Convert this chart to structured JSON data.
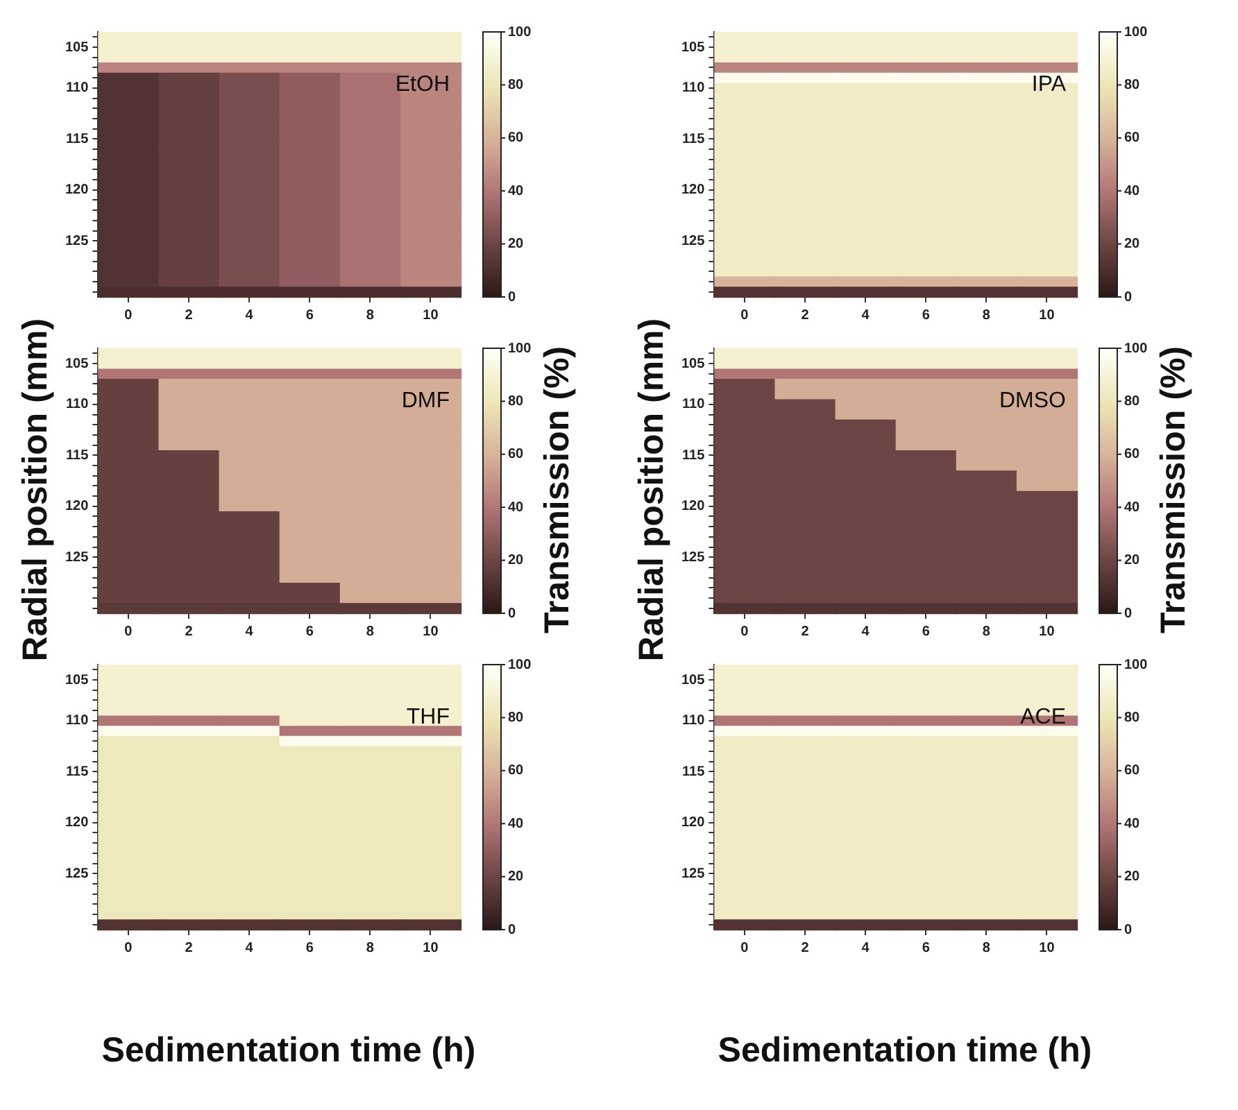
{
  "chart_data": [
    {
      "type": "heatmap",
      "title": "EtOH",
      "categories": [
        "0",
        "2",
        "4",
        "6",
        "8",
        "10"
      ],
      "y_categories": [
        null,
        "105",
        null,
        null,
        null,
        "110",
        null,
        null,
        null,
        null,
        "115",
        null,
        null,
        null,
        null,
        "120",
        null,
        null,
        null,
        null,
        "125",
        null,
        null,
        null,
        null,
        null
      ],
      "clim": [
        0,
        100
      ],
      "cticks": [
        0,
        20,
        40,
        60,
        80,
        100
      ],
      "cells": [
        [
          88,
          88,
          88,
          88,
          88,
          88
        ],
        [
          88,
          88,
          88,
          88,
          88,
          88
        ],
        [
          88,
          88,
          88,
          88,
          88,
          88
        ],
        [
          45,
          45,
          45,
          45,
          45,
          45
        ],
        [
          12,
          18,
          24,
          30,
          38,
          45
        ],
        [
          12,
          18,
          24,
          30,
          38,
          45
        ],
        [
          12,
          18,
          24,
          30,
          38,
          45
        ],
        [
          12,
          18,
          24,
          30,
          38,
          45
        ],
        [
          12,
          18,
          24,
          30,
          38,
          45
        ],
        [
          12,
          18,
          24,
          30,
          38,
          45
        ],
        [
          12,
          18,
          24,
          30,
          38,
          45
        ],
        [
          12,
          18,
          24,
          30,
          38,
          45
        ],
        [
          12,
          18,
          24,
          30,
          38,
          45
        ],
        [
          12,
          18,
          24,
          30,
          38,
          45
        ],
        [
          12,
          18,
          24,
          30,
          38,
          45
        ],
        [
          12,
          18,
          24,
          30,
          38,
          45
        ],
        [
          12,
          18,
          24,
          30,
          38,
          45
        ],
        [
          12,
          18,
          24,
          30,
          38,
          45
        ],
        [
          12,
          18,
          24,
          30,
          38,
          45
        ],
        [
          12,
          18,
          24,
          30,
          38,
          45
        ],
        [
          12,
          18,
          24,
          30,
          38,
          45
        ],
        [
          12,
          18,
          24,
          30,
          38,
          45
        ],
        [
          12,
          18,
          24,
          30,
          38,
          45
        ],
        [
          12,
          18,
          24,
          30,
          38,
          45
        ],
        [
          12,
          18,
          24,
          30,
          38,
          45
        ],
        [
          10,
          10,
          10,
          10,
          10,
          10
        ]
      ]
    },
    {
      "type": "heatmap",
      "title": "IPA",
      "categories": [
        "0",
        "2",
        "4",
        "6",
        "8",
        "10"
      ],
      "y_categories": [
        null,
        "105",
        null,
        null,
        null,
        "110",
        null,
        null,
        null,
        null,
        "115",
        null,
        null,
        null,
        null,
        "120",
        null,
        null,
        null,
        null,
        "125",
        null,
        null,
        null,
        null,
        null
      ],
      "clim": [
        0,
        100
      ],
      "cticks": [
        0,
        20,
        40,
        60,
        80,
        100
      ],
      "cells": [
        [
          88,
          88,
          88,
          88,
          88,
          88
        ],
        [
          88,
          88,
          88,
          88,
          88,
          88
        ],
        [
          88,
          88,
          88,
          88,
          88,
          88
        ],
        [
          45,
          45,
          45,
          45,
          45,
          45
        ],
        [
          97,
          97,
          97,
          97,
          97,
          97
        ],
        [
          85,
          85,
          85,
          85,
          85,
          85
        ],
        [
          85,
          85,
          85,
          85,
          85,
          85
        ],
        [
          85,
          85,
          85,
          85,
          85,
          85
        ],
        [
          85,
          85,
          85,
          85,
          85,
          85
        ],
        [
          85,
          85,
          85,
          85,
          85,
          85
        ],
        [
          85,
          85,
          85,
          85,
          85,
          85
        ],
        [
          85,
          85,
          85,
          85,
          85,
          85
        ],
        [
          85,
          85,
          85,
          85,
          85,
          85
        ],
        [
          85,
          85,
          85,
          85,
          85,
          85
        ],
        [
          85,
          85,
          85,
          85,
          85,
          85
        ],
        [
          85,
          85,
          85,
          85,
          85,
          85
        ],
        [
          85,
          85,
          85,
          85,
          85,
          85
        ],
        [
          85,
          85,
          85,
          85,
          85,
          85
        ],
        [
          85,
          85,
          85,
          85,
          85,
          85
        ],
        [
          85,
          85,
          85,
          85,
          85,
          85
        ],
        [
          85,
          85,
          85,
          85,
          85,
          85
        ],
        [
          85,
          85,
          85,
          85,
          85,
          85
        ],
        [
          85,
          85,
          85,
          85,
          85,
          85
        ],
        [
          85,
          85,
          85,
          85,
          85,
          85
        ],
        [
          60,
          60,
          60,
          60,
          60,
          60
        ],
        [
          12,
          12,
          12,
          12,
          12,
          12
        ]
      ]
    },
    {
      "type": "heatmap",
      "title": "DMF",
      "ylabel": "Radial position (mm)",
      "clabel": "Transmission (%)",
      "categories": [
        "0",
        "2",
        "4",
        "6",
        "8",
        "10"
      ],
      "y_categories": [
        null,
        "105",
        null,
        null,
        null,
        "110",
        null,
        null,
        null,
        null,
        "115",
        null,
        null,
        null,
        null,
        "120",
        null,
        null,
        null,
        null,
        "125",
        null,
        null,
        null,
        null,
        null
      ],
      "clim": [
        0,
        100
      ],
      "cticks": [
        0,
        20,
        40,
        60,
        80,
        100
      ],
      "cells": [
        [
          88,
          88,
          88,
          88,
          88,
          88
        ],
        [
          88,
          88,
          88,
          88,
          88,
          88
        ],
        [
          40,
          40,
          40,
          40,
          40,
          40
        ],
        [
          18,
          58,
          58,
          58,
          58,
          58
        ],
        [
          18,
          58,
          58,
          58,
          58,
          58
        ],
        [
          18,
          58,
          58,
          58,
          58,
          58
        ],
        [
          18,
          58,
          58,
          58,
          58,
          58
        ],
        [
          18,
          58,
          58,
          58,
          58,
          58
        ],
        [
          18,
          58,
          58,
          58,
          58,
          58
        ],
        [
          18,
          58,
          58,
          58,
          58,
          58
        ],
        [
          18,
          18,
          58,
          58,
          58,
          58
        ],
        [
          18,
          18,
          58,
          58,
          58,
          58
        ],
        [
          18,
          18,
          58,
          58,
          58,
          58
        ],
        [
          18,
          18,
          58,
          58,
          58,
          58
        ],
        [
          18,
          18,
          58,
          58,
          58,
          58
        ],
        [
          18,
          18,
          58,
          58,
          58,
          58
        ],
        [
          18,
          18,
          18,
          58,
          58,
          58
        ],
        [
          18,
          18,
          18,
          58,
          58,
          58
        ],
        [
          18,
          18,
          18,
          58,
          58,
          58
        ],
        [
          18,
          18,
          18,
          58,
          58,
          58
        ],
        [
          18,
          18,
          18,
          58,
          58,
          58
        ],
        [
          18,
          18,
          18,
          58,
          58,
          58
        ],
        [
          18,
          18,
          18,
          58,
          58,
          58
        ],
        [
          18,
          18,
          18,
          18,
          58,
          58
        ],
        [
          18,
          18,
          18,
          18,
          58,
          58
        ],
        [
          15,
          15,
          15,
          15,
          15,
          15
        ]
      ]
    },
    {
      "type": "heatmap",
      "title": "DMSO",
      "ylabel": "Radial position (mm)",
      "clabel": "Transmission (%)",
      "categories": [
        "0",
        "2",
        "4",
        "6",
        "8",
        "10"
      ],
      "y_categories": [
        null,
        "105",
        null,
        null,
        null,
        "110",
        null,
        null,
        null,
        null,
        "115",
        null,
        null,
        null,
        null,
        "120",
        null,
        null,
        null,
        null,
        "125",
        null,
        null,
        null,
        null,
        null
      ],
      "clim": [
        0,
        100
      ],
      "cticks": [
        0,
        20,
        40,
        60,
        80,
        100
      ],
      "cells": [
        [
          88,
          88,
          88,
          88,
          88,
          88
        ],
        [
          88,
          88,
          88,
          88,
          88,
          88
        ],
        [
          40,
          40,
          40,
          40,
          40,
          40
        ],
        [
          20,
          58,
          58,
          58,
          58,
          58
        ],
        [
          20,
          58,
          58,
          58,
          58,
          58
        ],
        [
          20,
          20,
          58,
          58,
          58,
          58
        ],
        [
          20,
          20,
          58,
          58,
          58,
          58
        ],
        [
          20,
          20,
          20,
          58,
          58,
          58
        ],
        [
          20,
          20,
          20,
          58,
          58,
          58
        ],
        [
          20,
          20,
          20,
          58,
          58,
          58
        ],
        [
          20,
          20,
          20,
          20,
          58,
          58
        ],
        [
          20,
          20,
          20,
          20,
          58,
          58
        ],
        [
          20,
          20,
          20,
          20,
          20,
          58
        ],
        [
          20,
          20,
          20,
          20,
          20,
          58
        ],
        [
          20,
          20,
          20,
          20,
          20,
          20
        ],
        [
          20,
          20,
          20,
          20,
          20,
          20
        ],
        [
          20,
          20,
          20,
          20,
          20,
          20
        ],
        [
          20,
          20,
          20,
          20,
          20,
          20
        ],
        [
          20,
          20,
          20,
          20,
          20,
          20
        ],
        [
          20,
          20,
          20,
          20,
          20,
          20
        ],
        [
          20,
          20,
          20,
          20,
          20,
          20
        ],
        [
          20,
          20,
          20,
          20,
          20,
          20
        ],
        [
          20,
          20,
          20,
          20,
          20,
          20
        ],
        [
          20,
          20,
          20,
          20,
          20,
          20
        ],
        [
          20,
          20,
          20,
          20,
          20,
          20
        ],
        [
          12,
          12,
          12,
          12,
          12,
          12
        ]
      ]
    },
    {
      "type": "heatmap",
      "title": "THF",
      "xlabel": "Sedimentation time (h)",
      "categories": [
        "0",
        "2",
        "4",
        "6",
        "8",
        "10"
      ],
      "y_categories": [
        null,
        "105",
        null,
        null,
        null,
        "110",
        null,
        null,
        null,
        null,
        "115",
        null,
        null,
        null,
        null,
        "120",
        null,
        null,
        null,
        null,
        "125",
        null,
        null,
        null,
        null,
        null
      ],
      "clim": [
        0,
        100
      ],
      "cticks": [
        0,
        20,
        40,
        60,
        80,
        100
      ],
      "cells": [
        [
          88,
          88,
          88,
          88,
          88,
          88
        ],
        [
          88,
          88,
          88,
          88,
          88,
          88
        ],
        [
          88,
          88,
          88,
          88,
          88,
          88
        ],
        [
          88,
          88,
          88,
          88,
          88,
          88
        ],
        [
          88,
          88,
          88,
          88,
          88,
          88
        ],
        [
          40,
          40,
          40,
          88,
          88,
          88
        ],
        [
          97,
          97,
          97,
          40,
          40,
          40
        ],
        [
          82,
          82,
          82,
          97,
          97,
          97
        ],
        [
          82,
          82,
          82,
          82,
          82,
          82
        ],
        [
          82,
          82,
          82,
          82,
          82,
          82
        ],
        [
          82,
          82,
          82,
          82,
          82,
          82
        ],
        [
          82,
          82,
          82,
          82,
          82,
          82
        ],
        [
          82,
          82,
          82,
          82,
          82,
          82
        ],
        [
          82,
          82,
          82,
          82,
          82,
          82
        ],
        [
          82,
          82,
          82,
          82,
          82,
          82
        ],
        [
          82,
          82,
          82,
          82,
          82,
          82
        ],
        [
          82,
          82,
          82,
          82,
          82,
          82
        ],
        [
          82,
          82,
          82,
          82,
          82,
          82
        ],
        [
          82,
          82,
          82,
          82,
          82,
          82
        ],
        [
          82,
          82,
          82,
          82,
          82,
          82
        ],
        [
          82,
          82,
          82,
          82,
          82,
          82
        ],
        [
          82,
          82,
          82,
          82,
          82,
          82
        ],
        [
          82,
          82,
          82,
          82,
          82,
          82
        ],
        [
          82,
          82,
          82,
          82,
          82,
          82
        ],
        [
          82,
          82,
          82,
          82,
          82,
          82
        ],
        [
          12,
          12,
          12,
          12,
          12,
          12
        ]
      ]
    },
    {
      "type": "heatmap",
      "title": "ACE",
      "xlabel": "Sedimentation time (h)",
      "categories": [
        "0",
        "2",
        "4",
        "6",
        "8",
        "10"
      ],
      "y_categories": [
        null,
        "105",
        null,
        null,
        null,
        "110",
        null,
        null,
        null,
        null,
        "115",
        null,
        null,
        null,
        null,
        "120",
        null,
        null,
        null,
        null,
        "125",
        null,
        null,
        null,
        null,
        null
      ],
      "clim": [
        0,
        100
      ],
      "cticks": [
        0,
        20,
        40,
        60,
        80,
        100
      ],
      "cells": [
        [
          88,
          88,
          88,
          88,
          88,
          88
        ],
        [
          88,
          88,
          88,
          88,
          88,
          88
        ],
        [
          88,
          88,
          88,
          88,
          88,
          88
        ],
        [
          88,
          88,
          88,
          88,
          88,
          88
        ],
        [
          88,
          88,
          88,
          88,
          88,
          88
        ],
        [
          40,
          40,
          40,
          40,
          40,
          40
        ],
        [
          97,
          97,
          97,
          97,
          97,
          97
        ],
        [
          85,
          85,
          85,
          85,
          85,
          85
        ],
        [
          85,
          85,
          85,
          85,
          85,
          85
        ],
        [
          85,
          85,
          85,
          85,
          85,
          85
        ],
        [
          85,
          85,
          85,
          85,
          85,
          85
        ],
        [
          85,
          85,
          85,
          85,
          85,
          85
        ],
        [
          85,
          85,
          85,
          85,
          85,
          85
        ],
        [
          85,
          85,
          85,
          85,
          85,
          85
        ],
        [
          85,
          85,
          85,
          85,
          85,
          85
        ],
        [
          85,
          85,
          85,
          85,
          85,
          85
        ],
        [
          85,
          85,
          85,
          85,
          85,
          85
        ],
        [
          85,
          85,
          85,
          85,
          85,
          85
        ],
        [
          85,
          85,
          85,
          85,
          85,
          85
        ],
        [
          85,
          85,
          85,
          85,
          85,
          85
        ],
        [
          85,
          85,
          85,
          85,
          85,
          85
        ],
        [
          85,
          85,
          85,
          85,
          85,
          85
        ],
        [
          85,
          85,
          85,
          85,
          85,
          85
        ],
        [
          85,
          85,
          85,
          85,
          85,
          85
        ],
        [
          85,
          85,
          85,
          85,
          85,
          85
        ],
        [
          12,
          12,
          12,
          12,
          12,
          12
        ]
      ]
    }
  ]
}
